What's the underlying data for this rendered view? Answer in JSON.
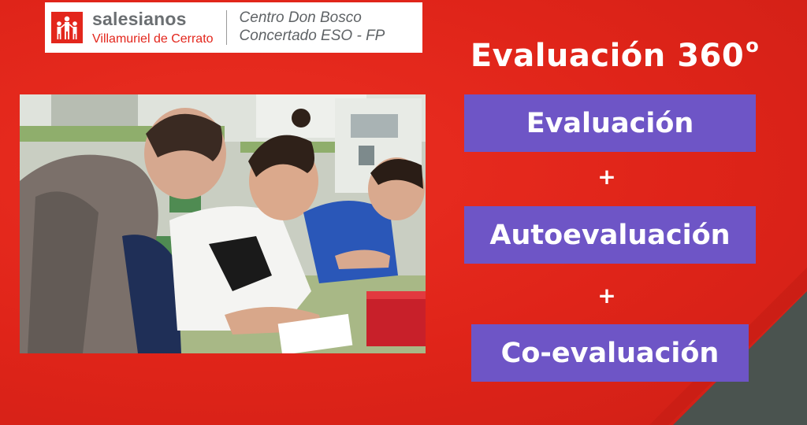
{
  "logo": {
    "brand": "salesianos",
    "location": "Villamuriel de Cerrato",
    "center_line1": "Centro Don Bosco",
    "center_line2": "Concertado ESO - FP",
    "icon": "salesianos-figures-icon"
  },
  "title": {
    "text": "Evaluación 360",
    "degree": "o"
  },
  "boxes": [
    {
      "label": "Evaluación"
    },
    {
      "label": "Autoevaluación"
    },
    {
      "label": "Co-evaluación"
    }
  ],
  "operators": [
    "+",
    "+"
  ],
  "colors": {
    "background": "#e3261c",
    "box": "#6e55c6",
    "corner": "#4a534f",
    "logo_brand": "#6b6f72"
  },
  "photo": {
    "subject": "students-working-at-desk-photo"
  }
}
